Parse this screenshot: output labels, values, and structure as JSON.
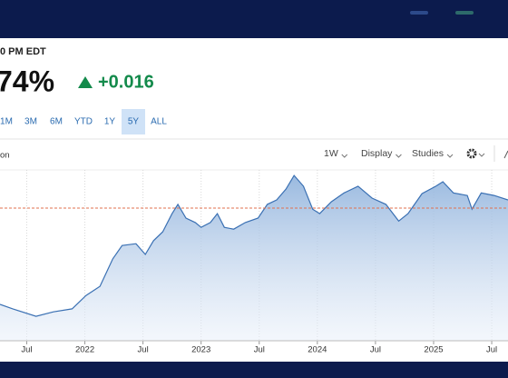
{
  "header": {
    "timestamp": "0 PM EDT",
    "price": "74%",
    "change": "+0.016"
  },
  "range_buttons": [
    "1M",
    "3M",
    "6M",
    "YTD",
    "1Y",
    "5Y",
    "ALL"
  ],
  "selected_range_index": 5,
  "panel_label": "on",
  "toolbar": [
    "1W",
    "Display",
    "Studies"
  ],
  "chart_data": {
    "type": "area",
    "color": "#3a70b3",
    "grid": true,
    "x": [
      2021.27,
      2021.38,
      2021.58,
      2021.73,
      2021.89,
      2022.01,
      2022.13,
      2022.24,
      2022.32,
      2022.44,
      2022.52,
      2022.59,
      2022.67,
      2022.75,
      2022.8,
      2022.87,
      2022.95,
      2023.0,
      2023.08,
      2023.14,
      2023.2,
      2023.28,
      2023.38,
      2023.49,
      2023.57,
      2023.65,
      2023.73,
      2023.8,
      2023.88,
      2023.96,
      2024.02,
      2024.12,
      2024.23,
      2024.35,
      2024.47,
      2024.59,
      2024.7,
      2024.78,
      2024.9,
      2025.02,
      2025.08,
      2025.17,
      2025.29,
      2025.33,
      2025.41,
      2025.52,
      2025.64
    ],
    "values": [
      1.52,
      1.4,
      1.2,
      1.32,
      1.4,
      1.76,
      2.01,
      2.75,
      3.11,
      3.16,
      2.87,
      3.24,
      3.48,
      3.97,
      4.22,
      3.85,
      3.73,
      3.6,
      3.73,
      3.97,
      3.6,
      3.55,
      3.73,
      3.85,
      4.22,
      4.34,
      4.63,
      5.0,
      4.71,
      4.09,
      3.97,
      4.29,
      4.53,
      4.71,
      4.39,
      4.22,
      3.77,
      3.97,
      4.51,
      4.71,
      4.83,
      4.53,
      4.46,
      4.09,
      4.53,
      4.46,
      4.34
    ],
    "xlim": [
      2021.27,
      2025.64
    ],
    "ylim": [
      0.54,
      5.15
    ],
    "xticks": [
      {
        "value": 2021.5,
        "label": "Jul"
      },
      2022,
      {
        "value": 2022.5,
        "label": "Jul"
      },
      2023,
      {
        "value": 2023.5,
        "label": "Jul"
      },
      2024,
      {
        "value": 2024.5,
        "label": "Jul"
      },
      2025,
      {
        "value": 2025.5,
        "label": "Jul"
      }
    ],
    "reference_line": {
      "value": 4.12,
      "color": "#e0704f"
    }
  }
}
